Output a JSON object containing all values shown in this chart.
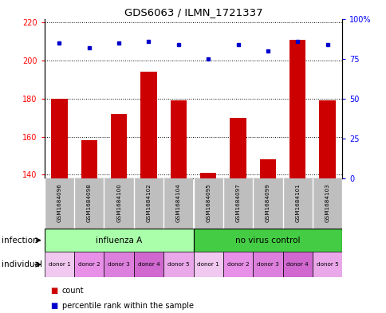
{
  "title": "GDS6063 / ILMN_1721337",
  "samples": [
    "GSM1684096",
    "GSM1684098",
    "GSM1684100",
    "GSM1684102",
    "GSM1684104",
    "GSM1684095",
    "GSM1684097",
    "GSM1684099",
    "GSM1684101",
    "GSM1684103"
  ],
  "counts": [
    180,
    158,
    172,
    194,
    179,
    141,
    170,
    148,
    211,
    179
  ],
  "percentiles": [
    85,
    82,
    85,
    86,
    84,
    75,
    84,
    80,
    86,
    84
  ],
  "ylim_left": [
    138,
    222
  ],
  "ylim_right": [
    0,
    100
  ],
  "yticks_left": [
    140,
    160,
    180,
    200,
    220
  ],
  "yticks_right": [
    0,
    25,
    50,
    75,
    100
  ],
  "ytick_labels_right": [
    "0",
    "25",
    "50",
    "75",
    "100%"
  ],
  "infection_groups": [
    {
      "label": "influenza A",
      "start": 0,
      "end": 5,
      "color": "#90EE90"
    },
    {
      "label": "no virus control",
      "start": 5,
      "end": 10,
      "color": "#3CB371"
    }
  ],
  "donors": [
    "donor 1",
    "donor 2",
    "donor 3",
    "donor 4",
    "donor 5",
    "donor 1",
    "donor 2",
    "donor 3",
    "donor 4",
    "donor 5"
  ],
  "donor_colors": [
    "#F0C8F0",
    "#E890E8",
    "#DD80DD",
    "#D068D0",
    "#EAA8EA",
    "#F0C8F0",
    "#E890E8",
    "#DD80DD",
    "#D068D0",
    "#EAA8EA"
  ],
  "bar_color": "#CC0000",
  "dot_color": "#0000CC",
  "bar_width": 0.55,
  "sample_row_color": "#BEBEBE",
  "infection_light_color": "#AAFFAA",
  "infection_dark_color": "#44CC44"
}
